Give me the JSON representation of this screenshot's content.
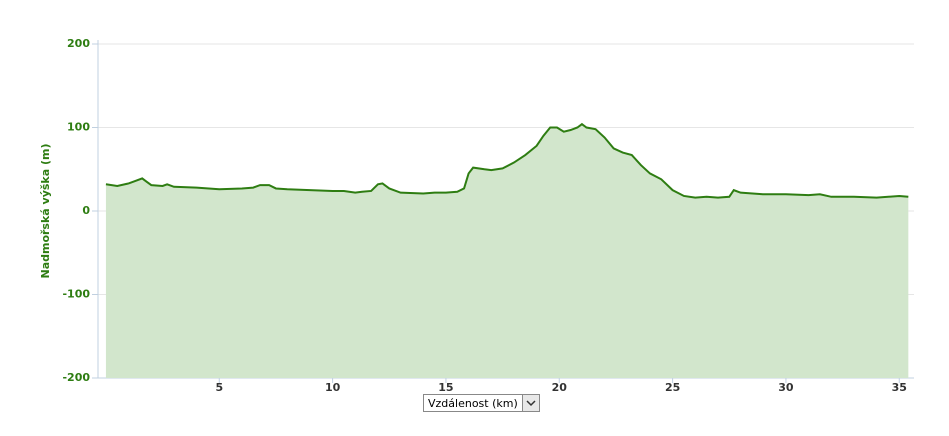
{
  "chart_data": {
    "type": "area",
    "y_label": "Nadmořská výška (m)",
    "x_selector": "Vzdálenost (km)",
    "x": [
      0,
      0.5,
      1.0,
      1.3,
      1.6,
      1.8,
      2.0,
      2.5,
      2.7,
      3,
      4,
      5,
      6,
      6.5,
      6.8,
      7.2,
      7.5,
      8,
      9,
      10,
      10.5,
      11,
      11.3,
      11.7,
      12,
      12.2,
      12.5,
      13,
      14,
      14.5,
      15,
      15.5,
      15.8,
      16,
      16.2,
      16.7,
      17,
      17.5,
      18,
      18.5,
      19,
      19.3,
      19.6,
      19.9,
      20.2,
      20.5,
      20.8,
      21.0,
      21.2,
      21.6,
      22,
      22.4,
      22.8,
      23.2,
      23.6,
      24,
      24.5,
      25,
      25.5,
      26,
      26.5,
      27,
      27.5,
      27.7,
      28,
      29,
      30,
      31,
      31.5,
      32,
      33,
      34,
      35,
      35.4
    ],
    "values": [
      32,
      30,
      33,
      36,
      39,
      35,
      31,
      30,
      32,
      29,
      28,
      26,
      27,
      28,
      31,
      31,
      27,
      26,
      25,
      24,
      24,
      22,
      23,
      24,
      32,
      33,
      27,
      22,
      21,
      22,
      22,
      23,
      27,
      45,
      52,
      50,
      49,
      51,
      58,
      67,
      78,
      90,
      100,
      100,
      95,
      97,
      100,
      104,
      100,
      98,
      88,
      75,
      70,
      67,
      55,
      45,
      38,
      25,
      18,
      16,
      17,
      16,
      17,
      25,
      22,
      20,
      20,
      19,
      20,
      17,
      17,
      16,
      18,
      17
    ],
    "line_color": "#2e7d12",
    "fill_color": "#d2e6cc",
    "xlim": [
      -0.35,
      35.65
    ],
    "xticks": [
      5,
      10,
      15,
      20,
      25,
      30,
      35
    ],
    "ylim": [
      -200,
      200
    ],
    "yticks": [
      -200,
      -100,
      0,
      100,
      200
    ],
    "grid": true
  }
}
